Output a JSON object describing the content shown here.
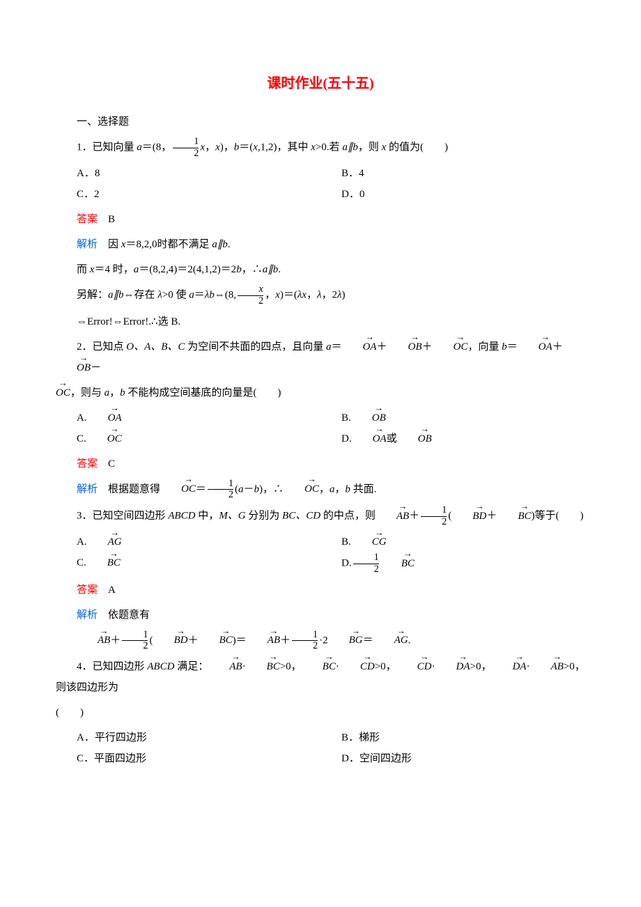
{
  "title": "课时作业(五十五)",
  "sec1": "一、选择题",
  "q1": {
    "stem_a": "1．已知向量 ",
    "stem_b": "＝(8，",
    "stem_c": "，",
    "stem_d": ")，",
    "stem_e": "＝(",
    "stem_f": ",1,2)，其中 ",
    "stem_g": ">0.若 ",
    "stem_h": "，则 ",
    "stem_i": " 的值为(　　)",
    "a_it": "a",
    "b_it": "b",
    "x_it": "x",
    "par": "a∥b",
    "frac_num": "1",
    "frac_den": "2",
    "A": "A．8",
    "B": "B．4",
    "C": "C．2",
    "D": "D．0",
    "ans_label": "答案",
    "ans": "　B",
    "exp_label": "解析",
    "e1a": "　因 ",
    "e1b": "＝8,2,0时都不满足 ",
    "e1c": ".",
    "e2a": "而 ",
    "e2b": "＝4 时，",
    "e2c": "＝(8,2,4)＝2(4,1,2)＝2",
    "e2d": "，∴",
    "e2e": ".",
    "e3a": "另解：",
    "e3b": "⇔存在 ",
    "lam": "λ",
    "e3c": ">0 使 ",
    "e3d": "＝",
    "e3e": "⇔(8,",
    "e3f": "，",
    "e3g": ")＝(",
    "e3h": "，",
    "e3i": "，2",
    "e3j": ")",
    "e4": "⇔Error!⇔Error!.∴选 B."
  },
  "q2": {
    "stem_a": "2．已知点 ",
    "OABC": "O、A、B、C",
    "stem_b": " 为空间不共面的四点，且向量 ",
    "stem_c": "＝",
    "stem_d": "＋",
    "stem_e": "＋",
    "stem_f": "，向量 ",
    "stem_g": "＝",
    "stem_h": "＋",
    "stem_i": "－",
    "OA": "OA",
    "OB": "OB",
    "OC": "OC",
    "a": "a",
    "b": "b",
    "line2a": "，则与 ",
    "line2b": "，",
    "line2c": " 不能构成空间基底的向量是(　　)",
    "A_pre": "A.",
    "B_pre": "B.",
    "C_pre": "C.",
    "D_pre": "D.",
    "D_mid": "或",
    "ans_label": "答案",
    "ans": "　C",
    "exp_label": "解析",
    "e1a": "　根据题意得",
    "e1b": "＝",
    "frac_num": "1",
    "frac_den": "2",
    "e1c": "(",
    "e1d": "－",
    "e1e": ")，∴",
    "e1f": "，",
    "e1g": "，",
    "e1h": " 共面."
  },
  "q3": {
    "stem_a": "3．已知空间四边形 ",
    "ABCD": "ABCD",
    "stem_b": " 中，",
    "MG": "M、G",
    "stem_c": " 分别为 ",
    "BCCD": "BC、CD",
    "stem_d": " 的中点，则",
    "AB": "AB",
    "stem_e": "＋",
    "frac_num": "1",
    "frac_den": "2",
    "stem_f": "(",
    "BD": "BD",
    "stem_g": "＋",
    "BC": "BC",
    "stem_h": ")等于(　　)",
    "AG": "AG",
    "CG": "CG",
    "A_pre": "A.",
    "B_pre": "B.",
    "C_pre": "C.",
    "D_pre": "D.",
    "ans_label": "答案",
    "ans": "　A",
    "exp_label": "解析",
    "e1": "　依题意有",
    "e2a": "＋",
    "e2b": "(",
    "e2c": "＋",
    "e2d": ")＝",
    "e2e": "＋",
    "e2f": "·2",
    "BG": "BG",
    "e2g": "＝",
    "e2h": "."
  },
  "q4": {
    "stem_a": "4．已知四边形 ",
    "ABCD": "ABCD",
    "stem_b": " 满足：",
    "AB": "AB",
    "BC": "BC",
    "CD": "CD",
    "DA": "DA",
    "dot": "·",
    "gt0": ">0，",
    "gt0e": ">0，则该四边形为",
    "tail": "(　　)",
    "A": "A．平行四边形",
    "B": "B．梯形",
    "C": "C．平面四边形",
    "D": "D．空间四边形"
  }
}
